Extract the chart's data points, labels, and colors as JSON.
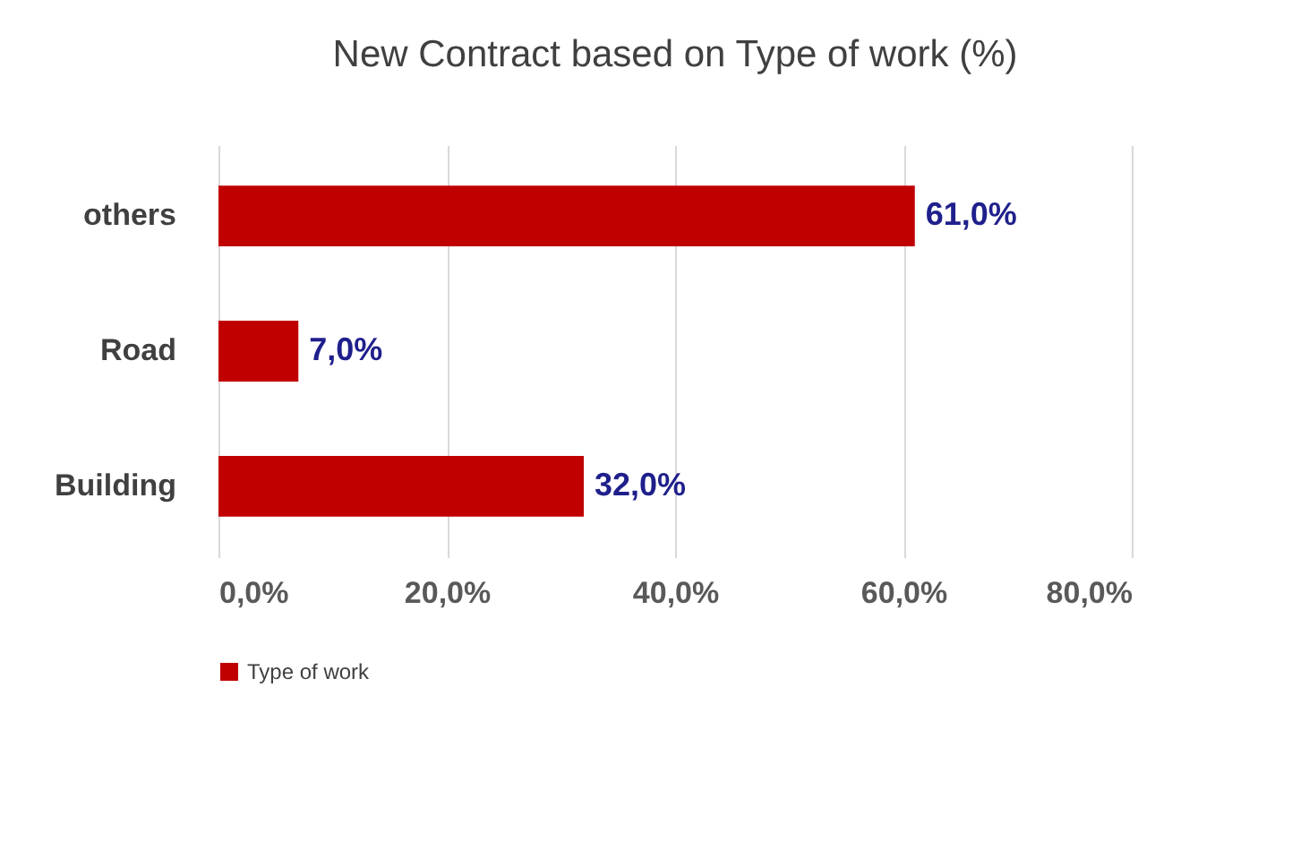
{
  "chart_data": {
    "type": "bar",
    "orientation": "horizontal",
    "title": "New Contract based on Type of work (%)",
    "categories": [
      "others",
      "Road",
      "Building"
    ],
    "series": [
      {
        "name": "Type of work",
        "color": "#c00000",
        "values": [
          61,
          7,
          32
        ],
        "value_labels": [
          "61,0%",
          "7,0%",
          "32,0%"
        ]
      }
    ],
    "xlim": [
      0,
      80
    ],
    "xticks": [
      {
        "value": 0,
        "label": "0,0%"
      },
      {
        "value": 20,
        "label": "20,0%"
      },
      {
        "value": 40,
        "label": "40,0%"
      },
      {
        "value": 60,
        "label": "60,0%"
      },
      {
        "value": 80,
        "label": "80,0%"
      }
    ],
    "grid": "x",
    "legend": "bottom"
  }
}
